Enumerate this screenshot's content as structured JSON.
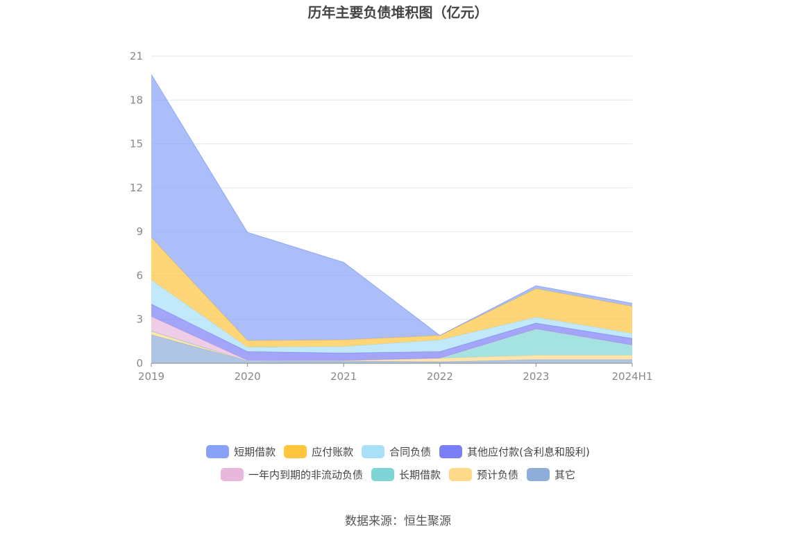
{
  "chart_data": {
    "type": "area",
    "stacked": true,
    "title": "历年主要负债堆积图（亿元）",
    "categories": [
      "2019",
      "2020",
      "2021",
      "2022",
      "2023",
      "2024H1"
    ],
    "ylim": [
      0,
      21
    ],
    "yticks": [
      0,
      3,
      6,
      9,
      12,
      15,
      18,
      21
    ],
    "grid": true,
    "legend_position": "bottom",
    "series": [
      {
        "name": "其它",
        "color": "#8fadd9",
        "values": [
          1.95,
          0.15,
          0.15,
          0.1,
          0.25,
          0.25
        ]
      },
      {
        "name": "预计负债",
        "color": "#ffd98a",
        "values": [
          0.25,
          0.0,
          0.05,
          0.25,
          0.3,
          0.3
        ]
      },
      {
        "name": "长期借款",
        "color": "#7fd5d5",
        "values": [
          0.0,
          0.0,
          0.0,
          0.0,
          1.8,
          0.7
        ]
      },
      {
        "name": "一年内到期的非流动负债",
        "color": "#e8b8dc",
        "values": [
          1.0,
          0.05,
          0.0,
          0.0,
          0.0,
          0.0
        ]
      },
      {
        "name": "其他应付款(含利息和股利)",
        "color": "#7b7ff5",
        "values": [
          0.85,
          0.6,
          0.5,
          0.45,
          0.4,
          0.45
        ]
      },
      {
        "name": "合同负债",
        "color": "#a8e0f7",
        "values": [
          1.65,
          0.3,
          0.45,
          0.8,
          0.4,
          0.35
        ]
      },
      {
        "name": "应付账款",
        "color": "#ffc53d",
        "values": [
          2.9,
          0.45,
          0.45,
          0.3,
          1.95,
          1.85
        ]
      },
      {
        "name": "短期借款",
        "color": "#87a2f7",
        "values": [
          11.15,
          7.4,
          5.3,
          0.0,
          0.2,
          0.2
        ]
      }
    ],
    "legend_rows": [
      [
        "短期借款",
        "应付账款",
        "合同负债",
        "其他应付款(含利息和股利)"
      ],
      [
        "一年内到期的非流动负债",
        "长期借款",
        "预计负债",
        "其它"
      ]
    ]
  },
  "source": "数据来源：恒生聚源"
}
